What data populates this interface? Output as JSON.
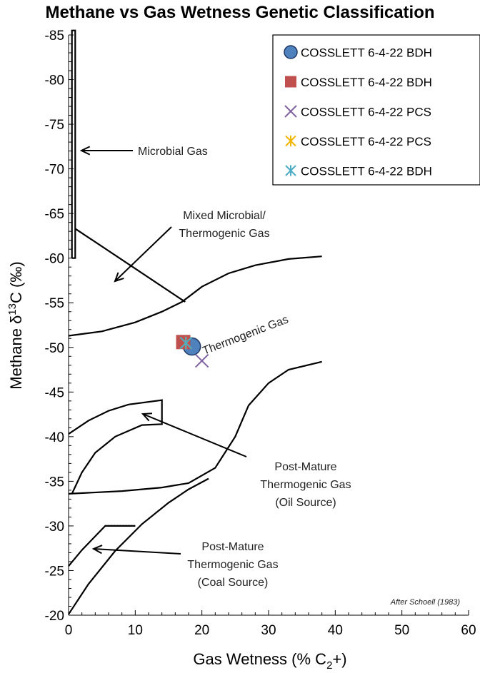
{
  "chart_data": {
    "type": "scatter",
    "title": "Methane vs Gas Wetness Genetic Classification",
    "xlabel_main": "Gas Wetness (% C",
    "xlabel_sub": "2",
    "xlabel_tail": "+)",
    "ylabel_main": "Methane  δ",
    "ylabel_sup": "13",
    "ylabel_tail": "C (‰)",
    "xlim": [
      0,
      60
    ],
    "ylim": [
      -20,
      -85
    ],
    "x_ticks": [
      "0",
      "10",
      "20",
      "30",
      "40",
      "50",
      "60"
    ],
    "y_ticks": [
      "-85",
      "-80",
      "-75",
      "-70",
      "-65",
      "-60",
      "-55",
      "-50",
      "-45",
      "-40",
      "-35",
      "-30",
      "-25",
      "-20"
    ],
    "grid": false,
    "legend_position": "top-right",
    "series": [
      {
        "name": "COSSLETT 6-4-22 BDH",
        "marker": "circle",
        "color": "#4F81BD",
        "points": [
          [
            18.5,
            -50.1
          ]
        ]
      },
      {
        "name": "COSSLETT 6-4-22 BDH",
        "marker": "square",
        "color": "#C0504D",
        "points": [
          [
            17.2,
            -50.6
          ]
        ]
      },
      {
        "name": "COSSLETT 6-4-22 PCS",
        "marker": "x",
        "color": "#8064A2",
        "points": [
          [
            20.0,
            -48.5
          ]
        ]
      },
      {
        "name": "COSSLETT 6-4-22 PCS",
        "marker": "star",
        "color": "#F2B705",
        "points": [
          [
            17.6,
            -50.5
          ]
        ]
      },
      {
        "name": "COSSLETT 6-4-22 BDH",
        "marker": "asterisk",
        "color": "#4BACC6",
        "points": [
          [
            17.6,
            -50.5
          ]
        ]
      }
    ],
    "annotations": {
      "microbial": "Microbial Gas",
      "mixed_1": "Mixed Microbial/",
      "mixed_2": "Thermogenic Gas",
      "thermogenic": "Thermogenic Gas",
      "oil_1": "Post-Mature",
      "oil_2": "Thermogenic Gas",
      "oil_3": "(Oil Source)",
      "coal_1": "Post-Mature",
      "coal_2": "Thermogenic Gas",
      "coal_3": "(Coal Source)",
      "credit": "After Schoell (1983)"
    }
  }
}
